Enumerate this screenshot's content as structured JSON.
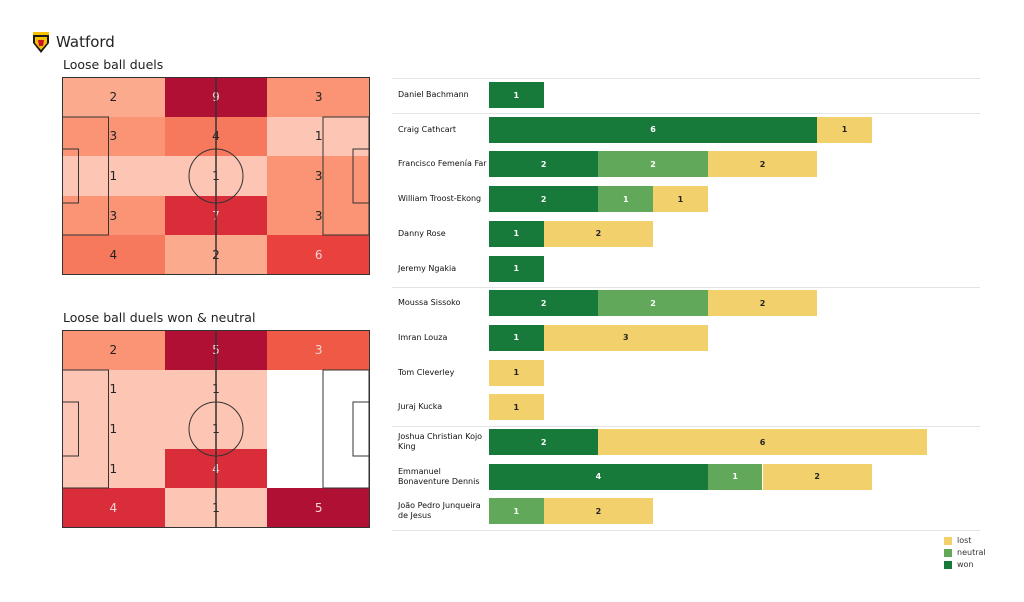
{
  "header": {
    "team": "Watford"
  },
  "colors": {
    "won": "#177a3a",
    "neutral": "#62a85a",
    "lost": "#f2d06b"
  },
  "chart_data": [
    {
      "type": "heatmap",
      "title": "Loose ball duels",
      "rows": [
        [
          2,
          9,
          3
        ],
        [
          3,
          4,
          1
        ],
        [
          1,
          1,
          3
        ],
        [
          3,
          7,
          3
        ],
        [
          4,
          2,
          6
        ]
      ]
    },
    {
      "type": "heatmap",
      "title": "Loose ball duels won & neutral",
      "rows": [
        [
          2,
          5,
          3
        ],
        [
          1,
          1,
          null
        ],
        [
          1,
          1,
          null
        ],
        [
          1,
          4,
          null
        ],
        [
          4,
          1,
          5
        ]
      ]
    },
    {
      "type": "bar",
      "orientation": "horizontal",
      "stacked": true,
      "legend": "bottom-right",
      "series_names": [
        "lost",
        "neutral",
        "won"
      ],
      "players": [
        {
          "name": "Daniel Bachmann",
          "won": 1,
          "neutral": 0,
          "lost": 0
        },
        {
          "name": "Craig Cathcart",
          "won": 6,
          "neutral": 0,
          "lost": 1
        },
        {
          "name": "Francisco Femenía Far",
          "won": 2,
          "neutral": 2,
          "lost": 2
        },
        {
          "name": "William Troost-Ekong",
          "won": 2,
          "neutral": 1,
          "lost": 1
        },
        {
          "name": "Danny Rose",
          "won": 1,
          "neutral": 0,
          "lost": 2
        },
        {
          "name": "Jeremy Ngakia",
          "won": 1,
          "neutral": 0,
          "lost": 0
        },
        {
          "name": "Moussa Sissoko",
          "won": 2,
          "neutral": 2,
          "lost": 2
        },
        {
          "name": "Imran Louza",
          "won": 1,
          "neutral": 0,
          "lost": 3
        },
        {
          "name": "Tom Cleverley",
          "won": 0,
          "neutral": 0,
          "lost": 1
        },
        {
          "name": "Juraj Kucka",
          "won": 0,
          "neutral": 0,
          "lost": 1
        },
        {
          "name": "Joshua Christian Kojo King",
          "won": 2,
          "neutral": 0,
          "lost": 6
        },
        {
          "name": "Emmanuel Bonaventure Dennis",
          "won": 4,
          "neutral": 1,
          "lost": 2
        },
        {
          "name": "João Pedro Junqueira de Jesus",
          "won": 0,
          "neutral": 1,
          "lost": 2
        }
      ]
    }
  ]
}
